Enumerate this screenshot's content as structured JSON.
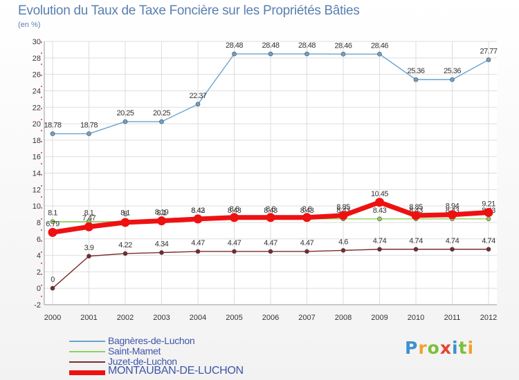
{
  "title": "Evolution du Taux de Taxe Foncière sur les Propriétés Bâties",
  "unit_label": "(en %)",
  "logo": {
    "text": "Proxiti",
    "letters": [
      {
        "ch": "P",
        "color": "#3d8fd1"
      },
      {
        "ch": "r",
        "color": "#f2a12e"
      },
      {
        "ch": "o",
        "color": "#7bbf3a"
      },
      {
        "ch": "x",
        "color": "#e5452f"
      },
      {
        "ch": "i",
        "color": "#3d8fd1"
      },
      {
        "ch": "t",
        "color": "#7bbf3a"
      },
      {
        "ch": "i",
        "color": "#f2a12e"
      }
    ]
  },
  "chart_data": {
    "type": "line",
    "title": "Evolution du Taux de Taxe Foncière sur les Propriétés Bâties",
    "ylabel": "(en %)",
    "xlabel": "",
    "ylim": [
      -2,
      30
    ],
    "yticks": [
      -2,
      0,
      2,
      4,
      6,
      8,
      10,
      12,
      14,
      16,
      18,
      20,
      22,
      24,
      26,
      28,
      30
    ],
    "grid": true,
    "legend_position": "bottom-left",
    "x": [
      "2000",
      "2001",
      "2002",
      "2003",
      "2004",
      "2005",
      "2006",
      "2007",
      "2008",
      "2009",
      "2010",
      "2011",
      "2012"
    ],
    "series": [
      {
        "name": "Bagnères-de-Luchon",
        "color": "#6aa3cf",
        "values": [
          18.78,
          18.78,
          20.25,
          20.25,
          22.37,
          28.48,
          28.48,
          28.48,
          28.46,
          28.46,
          25.36,
          25.36,
          27.77
        ],
        "labels": [
          "18.78",
          "18.78",
          "20.25",
          "20.25",
          "22.37",
          "28.48",
          "28.48",
          "28.48",
          "28.46",
          "28.46",
          "25.36",
          "25.36",
          "27.77"
        ]
      },
      {
        "name": "Saint-Mamet",
        "color": "#8fd15a",
        "values": [
          8.1,
          8.1,
          8.1,
          8.1,
          8.43,
          8.43,
          8.43,
          8.43,
          8.43,
          8.43,
          8.43,
          8.43,
          8.43
        ],
        "labels": [
          "8.1",
          "8.1",
          "8.1",
          "8.1",
          "8.43",
          "8.43",
          "8.43",
          "8.43",
          "8.43",
          "8.43",
          "8.43",
          "8.43",
          "8.43"
        ]
      },
      {
        "name": "Juzet-de-Luchon",
        "color": "#7a2a2a",
        "values": [
          0,
          3.9,
          4.22,
          4.34,
          4.47,
          4.47,
          4.47,
          4.47,
          4.6,
          4.74,
          4.74,
          4.74,
          4.74
        ],
        "labels": [
          "0",
          "3.9",
          "4.22",
          "4.34",
          "4.47",
          "4.47",
          "4.47",
          "4.47",
          "4.6",
          "4.74",
          "4.74",
          "4.74",
          "4.74"
        ]
      },
      {
        "name": "MONTAUBAN-DE-LUCHON",
        "color": "#ee1111",
        "values": [
          6.79,
          7.47,
          8.0,
          8.19,
          8.42,
          8.6,
          8.6,
          8.6,
          8.85,
          10.45,
          8.85,
          8.94,
          9.21
        ],
        "labels": [
          "6.79",
          "7.47",
          "8",
          "8.19",
          "8.42",
          "8.6",
          "8.6",
          "8.6",
          "8.85",
          "10.45",
          "8.85",
          "8.94",
          "9.21"
        ]
      }
    ]
  }
}
